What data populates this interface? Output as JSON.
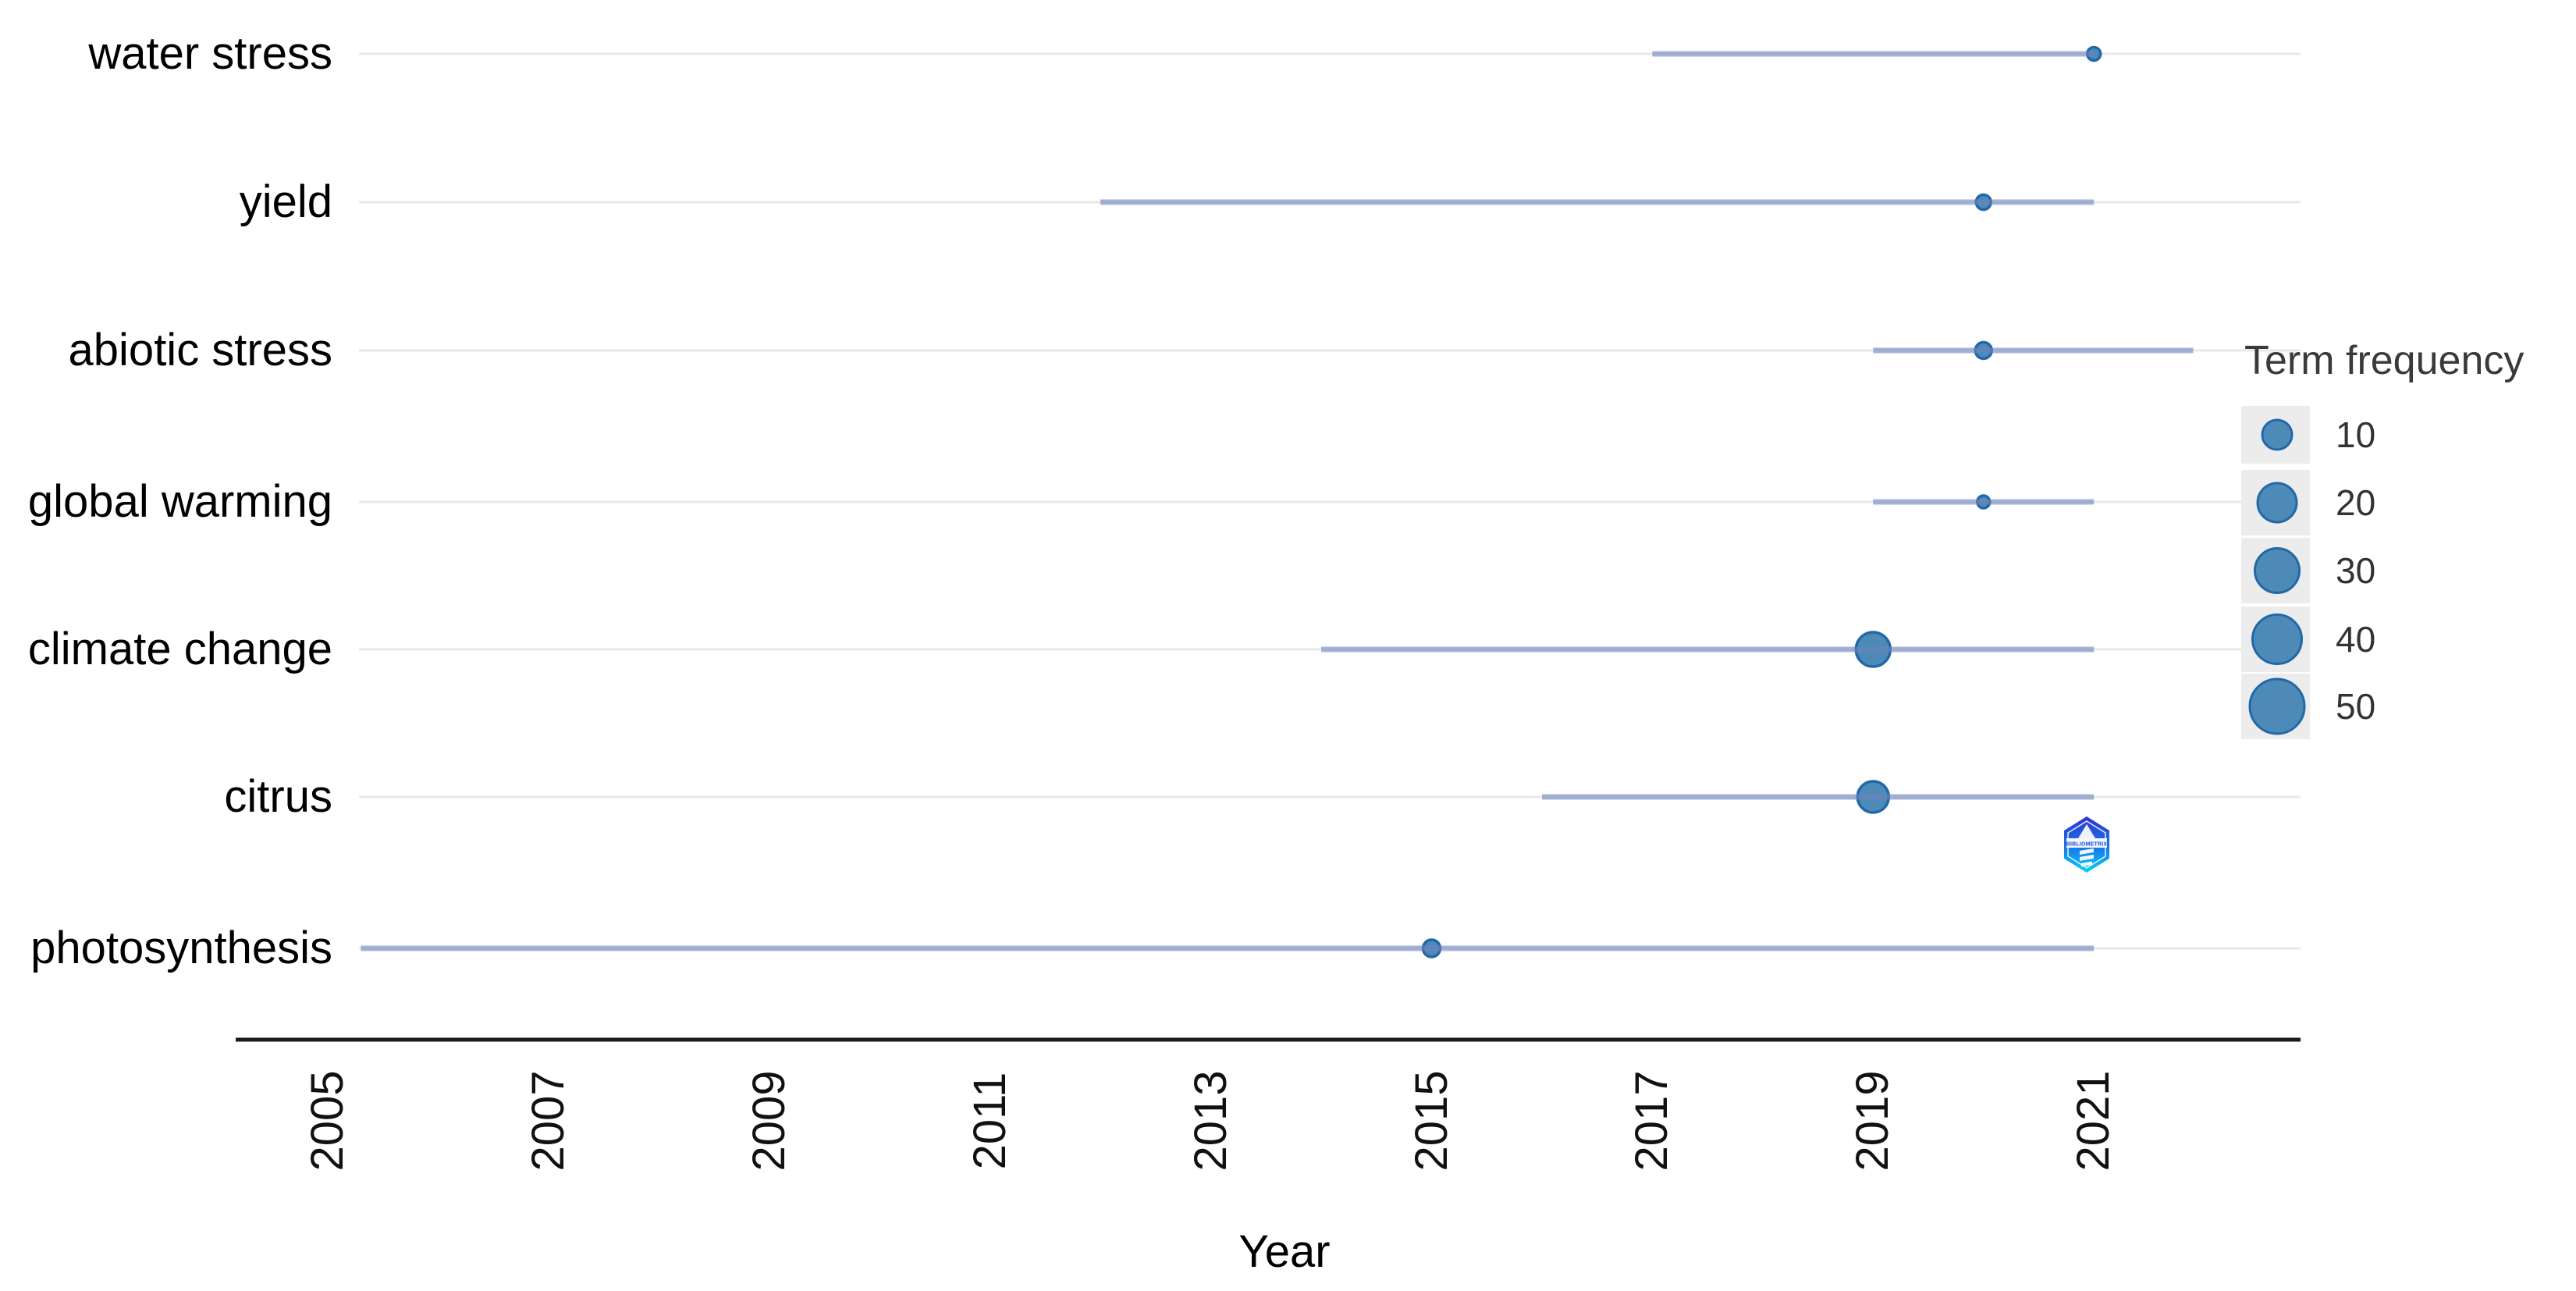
{
  "chart_data": {
    "type": "scatter",
    "subtype": "bubble-timeline-trend-topics",
    "title": "",
    "xlabel": "Year",
    "ylabel": "",
    "x_axis": {
      "ticks": [
        2005,
        2007,
        2009,
        2011,
        2013,
        2015,
        2017,
        2019,
        2021
      ],
      "range": [
        2004.6,
        2022.9
      ],
      "tick_label_rotation_deg": 90
    },
    "grid": "horizontal-only",
    "terms": [
      {
        "term": "water stress",
        "year_q1": 2017,
        "year_median": 2021,
        "year_q3": 2021,
        "frequency_approx": 2,
        "dot_radius_px": 8.5
      },
      {
        "term": "yield",
        "year_q1": 2012,
        "year_median": 2020,
        "year_q3": 2021,
        "frequency_approx": 3,
        "dot_radius_px": 9.5
      },
      {
        "term": "abiotic stress",
        "year_q1": 2019,
        "year_median": 2020,
        "year_q3": 2021.9,
        "frequency_approx": 4,
        "dot_radius_px": 10.5
      },
      {
        "term": "global warming",
        "year_q1": 2019,
        "year_median": 2020,
        "year_q3": 2021,
        "frequency_approx": 2,
        "dot_radius_px": 8
      },
      {
        "term": "climate change",
        "year_q1": 2014,
        "year_median": 2019,
        "year_q3": 2021,
        "frequency_approx": 16,
        "dot_radius_px": 22
      },
      {
        "term": "citrus",
        "year_q1": 2016,
        "year_median": 2019,
        "year_q3": 2021,
        "frequency_approx": 13,
        "dot_radius_px": 20
      },
      {
        "term": "photosynthesis",
        "year_q1": 2005.3,
        "year_median": 2015,
        "year_q3": 2021,
        "frequency_approx": 4,
        "dot_radius_px": 11
      }
    ],
    "legend": {
      "title": "Term frequency",
      "position": "right",
      "items": [
        {
          "value": "10",
          "radius_px": 19
        },
        {
          "value": "20",
          "radius_px": 25
        },
        {
          "value": "30",
          "radius_px": 28.5
        },
        {
          "value": "40",
          "radius_px": 31.5
        },
        {
          "value": "50",
          "radius_px": 35
        }
      ]
    },
    "colors": {
      "dot_fill": "#4e8ab8",
      "dot_stroke": "#2268a8",
      "segment_rgba": "rgba(108,130,188,0.6)",
      "gridline": "#e8e8e8",
      "axis_line": "#1a1a1a",
      "text": "#000000",
      "legend_key_bg": "#ececec",
      "legend_value_text": "#333333",
      "watermark_blue": "#2e35cf",
      "watermark_cyan": "#06d2f7"
    },
    "watermark": {
      "label": "BIBLIOMETRIX"
    }
  }
}
